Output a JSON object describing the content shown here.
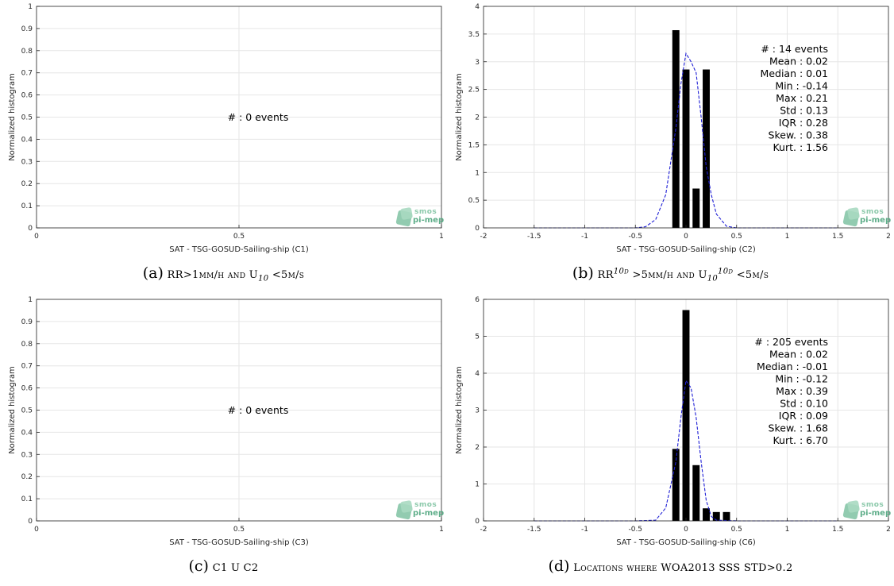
{
  "logo": {
    "line1": "smos",
    "line2": "pi-mep"
  },
  "panels": {
    "a": {
      "caption_letter": "(a)",
      "caption_parts": [
        "RR>1mm/h and U",
        "10",
        " <5m/s"
      ],
      "xlabel": "SAT - TSG-GOSUD-Sailing-ship (C1)",
      "ylabel": "Normalized histogram",
      "annotation": "#  : 0 events"
    },
    "b": {
      "caption_letter": "(b)",
      "caption_parts": [
        "RR",
        "10d",
        " >5mm/h and U",
        "10",
        "10d",
        " <5m/s"
      ],
      "xlabel": "SAT - TSG-GOSUD-Sailing-ship (C2)",
      "ylabel": "Normalized histogram",
      "stats": [
        "#  : 14 events",
        "Mean : 0.02",
        "Median : 0.01",
        "Min : -0.14",
        "Max : 0.21",
        "Std : 0.13",
        "IQR : 0.28",
        "Skew. : 0.38",
        "Kurt. : 1.56"
      ]
    },
    "c": {
      "caption_letter": "(c)",
      "caption_text": "C1 U C2",
      "xlabel": "SAT - TSG-GOSUD-Sailing-ship (C3)",
      "ylabel": "Normalized histogram",
      "annotation": "#  : 0 events"
    },
    "d": {
      "caption_letter": "(d)",
      "caption_text": "Locations where WOA2013 SSS STD>0.2",
      "xlabel": "SAT - TSG-GOSUD-Sailing-ship (C6)",
      "ylabel": "Normalized histogram",
      "stats": [
        "#  : 205 events",
        "Mean : 0.02",
        "Median : -0.01",
        "Min : -0.12",
        "Max : 0.39",
        "Std : 0.10",
        "IQR : 0.09",
        "Skew. : 1.68",
        "Kurt. : 6.70"
      ]
    }
  },
  "colors": {
    "bar": "#000000",
    "fit": "#1f1fd6",
    "grid": "#e6e6e6",
    "axis": "#262626"
  },
  "chart_data": [
    {
      "id": "a",
      "type": "bar",
      "xlim": [
        0,
        1
      ],
      "ylim": [
        0,
        1
      ],
      "xticks": [
        "0",
        "0.5",
        "1"
      ],
      "yticks": [
        "0",
        "0.1",
        "0.2",
        "0.3",
        "0.4",
        "0.5",
        "0.6",
        "0.7",
        "0.8",
        "0.9",
        "1"
      ],
      "bars": [],
      "fit": [],
      "grid": true
    },
    {
      "id": "b",
      "type": "bar",
      "xlim": [
        -2,
        2
      ],
      "ylim": [
        0,
        4
      ],
      "xticks": [
        "-2",
        "-1.5",
        "-1",
        "-0.5",
        "0",
        "0.5",
        "1",
        "1.5",
        "2"
      ],
      "yticks": [
        "0",
        "0.5",
        "1",
        "1.5",
        "2",
        "2.5",
        "3",
        "3.5",
        "4"
      ],
      "bar_width": 0.07,
      "bars": [
        {
          "x": -0.1,
          "y": 3.57
        },
        {
          "x": 0.0,
          "y": 2.86
        },
        {
          "x": 0.1,
          "y": 0.71
        },
        {
          "x": 0.2,
          "y": 2.86
        }
      ],
      "fit": [
        {
          "x": -1.5,
          "y": 0
        },
        {
          "x": -1.0,
          "y": 0
        },
        {
          "x": -0.5,
          "y": 0
        },
        {
          "x": -0.4,
          "y": 0.02
        },
        {
          "x": -0.3,
          "y": 0.15
        },
        {
          "x": -0.2,
          "y": 0.6
        },
        {
          "x": -0.1,
          "y": 1.8
        },
        {
          "x": -0.05,
          "y": 2.6
        },
        {
          "x": 0.0,
          "y": 3.15
        },
        {
          "x": 0.05,
          "y": 3.0
        },
        {
          "x": 0.1,
          "y": 2.8
        },
        {
          "x": 0.15,
          "y": 2.0
        },
        {
          "x": 0.2,
          "y": 1.1
        },
        {
          "x": 0.25,
          "y": 0.6
        },
        {
          "x": 0.3,
          "y": 0.25
        },
        {
          "x": 0.4,
          "y": 0.03
        },
        {
          "x": 0.5,
          "y": 0
        },
        {
          "x": 1.0,
          "y": 0
        },
        {
          "x": 1.5,
          "y": 0
        }
      ],
      "grid": true
    },
    {
      "id": "c",
      "type": "bar",
      "xlim": [
        0,
        1
      ],
      "ylim": [
        0,
        1
      ],
      "xticks": [
        "0",
        "0.5",
        "1"
      ],
      "yticks": [
        "0",
        "0.1",
        "0.2",
        "0.3",
        "0.4",
        "0.5",
        "0.6",
        "0.7",
        "0.8",
        "0.9",
        "1"
      ],
      "bars": [],
      "fit": [],
      "grid": true
    },
    {
      "id": "d",
      "type": "bar",
      "xlim": [
        -2,
        2
      ],
      "ylim": [
        0,
        6
      ],
      "xticks": [
        "-2",
        "-1.5",
        "-1",
        "-0.5",
        "0",
        "0.5",
        "1",
        "1.5",
        "2"
      ],
      "yticks": [
        "0",
        "1",
        "2",
        "3",
        "4",
        "5",
        "6"
      ],
      "bar_width": 0.07,
      "bars": [
        {
          "x": -0.1,
          "y": 1.95
        },
        {
          "x": 0.0,
          "y": 5.71
        },
        {
          "x": 0.1,
          "y": 1.51
        },
        {
          "x": 0.2,
          "y": 0.34
        },
        {
          "x": 0.3,
          "y": 0.24
        },
        {
          "x": 0.4,
          "y": 0.24
        }
      ],
      "fit": [
        {
          "x": -1.5,
          "y": 0
        },
        {
          "x": -1.0,
          "y": 0
        },
        {
          "x": -0.5,
          "y": 0
        },
        {
          "x": -0.3,
          "y": 0.02
        },
        {
          "x": -0.2,
          "y": 0.35
        },
        {
          "x": -0.1,
          "y": 1.6
        },
        {
          "x": -0.05,
          "y": 2.8
        },
        {
          "x": 0.0,
          "y": 3.8
        },
        {
          "x": 0.05,
          "y": 3.6
        },
        {
          "x": 0.1,
          "y": 2.8
        },
        {
          "x": 0.15,
          "y": 1.6
        },
        {
          "x": 0.2,
          "y": 0.55
        },
        {
          "x": 0.25,
          "y": 0.12
        },
        {
          "x": 0.3,
          "y": 0.02
        },
        {
          "x": 0.5,
          "y": 0
        },
        {
          "x": 1.0,
          "y": 0
        },
        {
          "x": 1.5,
          "y": 0
        }
      ],
      "grid": true
    }
  ]
}
